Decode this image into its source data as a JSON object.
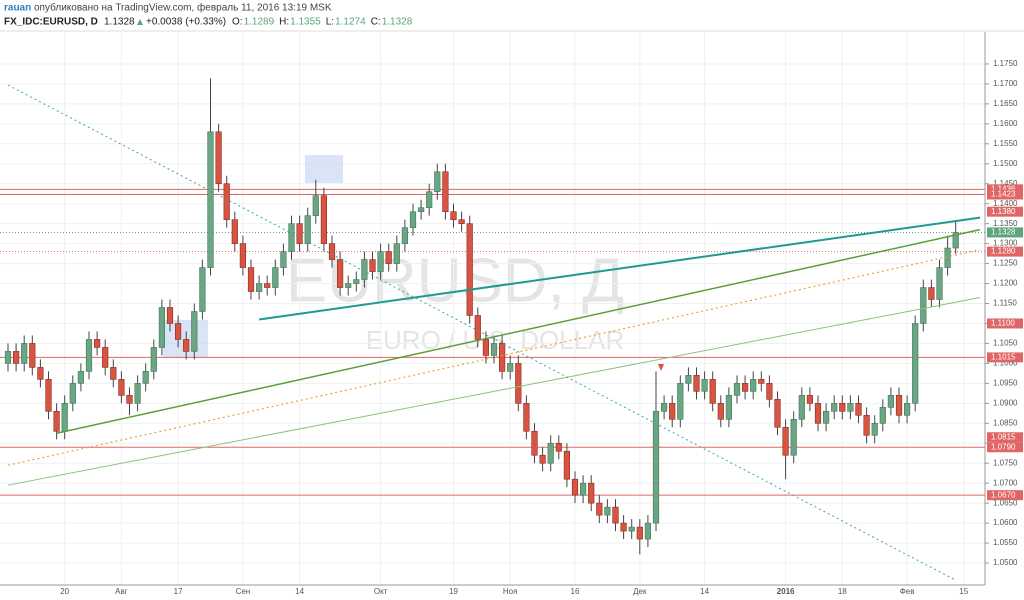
{
  "header": {
    "user": "rauan",
    "published": "опубликовано на TradingView.com, февраль 11, 2016 13:19 MSK",
    "symbol": "FX_IDC:EURUSD, D",
    "last": "1.1328",
    "change": "+0.0038 (+0.33%)",
    "ohlc": [
      {
        "label": "O:",
        "value": "1.1289"
      },
      {
        "label": "H:",
        "value": "1.1355"
      },
      {
        "label": "L:",
        "value": "1.1274"
      },
      {
        "label": "C:",
        "value": "1.1328"
      }
    ]
  },
  "chart_data": {
    "type": "candlestick",
    "watermark": {
      "symbol": "EURUSD, Д",
      "description": "EURO / U.S. DOLLAR"
    },
    "categories": [
      null,
      null,
      null,
      null,
      null,
      null,
      null,
      "20",
      null,
      null,
      null,
      null,
      null,
      null,
      "Авг",
      null,
      null,
      null,
      null,
      null,
      null,
      "17",
      null,
      null,
      null,
      null,
      null,
      null,
      null,
      "Сен",
      null,
      null,
      null,
      null,
      null,
      null,
      "14",
      null,
      null,
      null,
      null,
      null,
      null,
      null,
      null,
      null,
      "Окт",
      null,
      null,
      null,
      null,
      null,
      null,
      null,
      null,
      "19",
      null,
      null,
      null,
      null,
      null,
      null,
      "Ноя",
      null,
      null,
      null,
      null,
      null,
      null,
      null,
      "16",
      null,
      null,
      null,
      null,
      null,
      null,
      null,
      "Дек",
      null,
      null,
      null,
      null,
      null,
      null,
      null,
      "14",
      null,
      null,
      null,
      null,
      null,
      null,
      null,
      null,
      null,
      "2016",
      null,
      null,
      null,
      null,
      null,
      null,
      "18",
      null,
      null,
      null,
      null,
      null,
      null,
      null,
      "Фев",
      null,
      null,
      null,
      null,
      null,
      null,
      "15"
    ],
    "open": [
      1.1,
      1.103,
      1.1,
      1.105,
      1.099,
      1.096,
      1.088,
      1.083,
      1.09,
      1.095,
      1.098,
      1.106,
      1.104,
      1.099,
      1.096,
      1.092,
      1.09,
      1.095,
      1.098,
      1.104,
      1.114,
      1.11,
      1.106,
      1.103,
      1.113,
      1.124,
      1.158,
      1.145,
      1.136,
      1.13,
      1.124,
      1.118,
      1.12,
      1.119,
      1.124,
      1.128,
      1.135,
      1.13,
      1.137,
      1.142,
      1.13,
      1.126,
      1.119,
      1.12,
      1.121,
      1.126,
      1.123,
      1.128,
      1.125,
      1.13,
      1.134,
      1.138,
      1.139,
      1.143,
      1.148,
      1.138,
      1.136,
      1.135,
      1.112,
      1.106,
      1.102,
      1.105,
      1.098,
      1.1,
      1.09,
      1.083,
      1.077,
      1.075,
      1.08,
      1.078,
      1.071,
      1.067,
      1.07,
      1.065,
      1.062,
      1.064,
      1.06,
      1.058,
      1.059,
      1.056,
      1.06,
      1.088,
      1.09,
      1.086,
      1.095,
      1.097,
      1.093,
      1.096,
      1.09,
      1.086,
      1.092,
      1.095,
      1.093,
      1.096,
      1.095,
      1.091,
      1.084,
      1.077,
      1.086,
      1.092,
      1.09,
      1.085,
      1.088,
      1.09,
      1.088,
      1.09,
      1.087,
      1.082,
      1.085,
      1.089,
      1.092,
      1.087,
      1.09,
      1.11,
      1.119,
      1.116,
      1.124,
      1.1289,
      null
    ],
    "high": [
      1.105,
      1.105,
      1.107,
      1.107,
      1.101,
      1.098,
      1.09,
      1.092,
      1.097,
      1.1,
      1.108,
      1.108,
      1.106,
      1.101,
      1.098,
      1.094,
      1.097,
      1.1,
      1.106,
      1.116,
      1.116,
      1.112,
      1.108,
      1.115,
      1.126,
      1.1714,
      1.16,
      1.147,
      1.138,
      1.132,
      1.126,
      1.122,
      1.122,
      1.126,
      1.13,
      1.137,
      1.137,
      1.139,
      1.146,
      1.144,
      1.132,
      1.128,
      1.122,
      1.123,
      1.128,
      1.128,
      1.13,
      1.13,
      1.132,
      1.136,
      1.14,
      1.141,
      1.145,
      1.15,
      1.15,
      1.14,
      1.138,
      1.137,
      1.114,
      1.108,
      1.107,
      1.107,
      1.102,
      1.102,
      1.092,
      1.085,
      1.079,
      1.082,
      1.082,
      1.08,
      1.073,
      1.072,
      1.072,
      1.067,
      1.066,
      1.066,
      1.062,
      1.061,
      1.061,
      1.062,
      1.098,
      1.092,
      1.092,
      1.097,
      1.099,
      1.099,
      1.098,
      1.098,
      1.092,
      1.094,
      1.097,
      1.097,
      1.098,
      1.098,
      1.097,
      1.093,
      1.086,
      1.088,
      1.094,
      1.094,
      1.092,
      1.09,
      1.092,
      1.092,
      1.092,
      1.092,
      1.089,
      1.087,
      1.091,
      1.094,
      1.094,
      1.092,
      1.112,
      1.121,
      1.121,
      1.126,
      1.132,
      1.1355,
      null
    ],
    "low": [
      1.098,
      1.098,
      1.098,
      1.097,
      1.094,
      1.086,
      1.081,
      1.081,
      1.088,
      1.093,
      1.096,
      1.102,
      1.097,
      1.094,
      1.09,
      1.087,
      1.088,
      1.093,
      1.096,
      1.102,
      1.108,
      1.104,
      1.101,
      1.101,
      1.111,
      1.122,
      1.143,
      1.134,
      1.128,
      1.122,
      1.116,
      1.116,
      1.117,
      1.117,
      1.122,
      1.126,
      1.128,
      1.128,
      1.135,
      1.128,
      1.124,
      1.117,
      1.117,
      1.118,
      1.119,
      1.121,
      1.121,
      1.123,
      1.123,
      1.128,
      1.132,
      1.136,
      1.137,
      1.141,
      1.136,
      1.134,
      1.133,
      1.11,
      1.104,
      1.1,
      1.1,
      1.096,
      1.096,
      1.088,
      1.081,
      1.075,
      1.073,
      1.073,
      1.076,
      1.069,
      1.065,
      1.065,
      1.063,
      1.06,
      1.06,
      1.058,
      1.056,
      1.056,
      1.0522,
      1.054,
      1.058,
      1.086,
      1.084,
      1.084,
      1.093,
      1.091,
      1.091,
      1.088,
      1.084,
      1.084,
      1.09,
      1.091,
      1.091,
      1.093,
      1.089,
      1.082,
      1.071,
      1.075,
      1.084,
      1.088,
      1.083,
      1.083,
      1.086,
      1.086,
      1.086,
      1.085,
      1.08,
      1.08,
      1.083,
      1.087,
      1.085,
      1.085,
      1.088,
      1.108,
      1.114,
      1.114,
      1.122,
      1.1274,
      null
    ],
    "close": [
      1.103,
      1.1,
      1.105,
      1.099,
      1.096,
      1.088,
      1.083,
      1.09,
      1.095,
      1.098,
      1.106,
      1.104,
      1.099,
      1.096,
      1.092,
      1.09,
      1.095,
      1.098,
      1.104,
      1.114,
      1.11,
      1.106,
      1.103,
      1.113,
      1.124,
      1.158,
      1.145,
      1.136,
      1.13,
      1.124,
      1.118,
      1.12,
      1.119,
      1.124,
      1.128,
      1.135,
      1.13,
      1.137,
      1.142,
      1.13,
      1.126,
      1.119,
      1.12,
      1.121,
      1.126,
      1.123,
      1.128,
      1.125,
      1.13,
      1.134,
      1.138,
      1.139,
      1.143,
      1.148,
      1.138,
      1.136,
      1.135,
      1.112,
      1.106,
      1.102,
      1.105,
      1.098,
      1.1,
      1.09,
      1.083,
      1.077,
      1.075,
      1.08,
      1.078,
      1.071,
      1.067,
      1.07,
      1.065,
      1.062,
      1.064,
      1.06,
      1.058,
      1.059,
      1.056,
      1.06,
      1.088,
      1.09,
      1.086,
      1.095,
      1.097,
      1.093,
      1.096,
      1.09,
      1.086,
      1.092,
      1.095,
      1.093,
      1.096,
      1.095,
      1.091,
      1.084,
      1.077,
      1.086,
      1.092,
      1.09,
      1.085,
      1.088,
      1.09,
      1.088,
      1.09,
      1.087,
      1.082,
      1.085,
      1.089,
      1.092,
      1.087,
      1.09,
      1.11,
      1.119,
      1.116,
      1.124,
      1.1289,
      1.1328,
      null
    ],
    "up_color": "#6ba583",
    "down_color": "#d75442",
    "ylim": [
      1.0445,
      1.183
    ],
    "yticks": [
      {
        "value": 1.05,
        "label": "1.0500"
      },
      {
        "value": 1.055,
        "label": "1.0550"
      },
      {
        "value": 1.06,
        "label": "1.0600"
      },
      {
        "value": 1.065,
        "label": "1.0650"
      },
      {
        "value": 1.07,
        "label": "1.0700"
      },
      {
        "value": 1.075,
        "label": "1.0750"
      },
      {
        "value": 1.08,
        "label": "1.0800"
      },
      {
        "value": 1.085,
        "label": "1.0850"
      },
      {
        "value": 1.09,
        "label": "1.0900"
      },
      {
        "value": 1.095,
        "label": "1.0950"
      },
      {
        "value": 1.1,
        "label": "1.1000"
      },
      {
        "value": 1.105,
        "label": "1.1050"
      },
      {
        "value": 1.11,
        "label": "1.1100"
      },
      {
        "value": 1.115,
        "label": "1.1150"
      },
      {
        "value": 1.12,
        "label": "1.1200"
      },
      {
        "value": 1.125,
        "label": "1.1250"
      },
      {
        "value": 1.13,
        "label": "1.1300"
      },
      {
        "value": 1.135,
        "label": "1.1350"
      },
      {
        "value": 1.14,
        "label": "1.1400"
      },
      {
        "value": 1.145,
        "label": "1.1450"
      },
      {
        "value": 1.15,
        "label": "1.1500"
      },
      {
        "value": 1.155,
        "label": "1.1550"
      },
      {
        "value": 1.16,
        "label": "1.1600"
      },
      {
        "value": 1.165,
        "label": "1.1650"
      },
      {
        "value": 1.17,
        "label": "1.1700"
      },
      {
        "value": 1.175,
        "label": "1.1750"
      }
    ],
    "grid": true,
    "levels": [
      {
        "value": 1.1436,
        "label": "1.1436",
        "color": "#e06666",
        "line": "solid"
      },
      {
        "value": 1.1423,
        "label": "1.1423",
        "color": "#e06666",
        "line": "solid"
      },
      {
        "value": 1.138,
        "label": "1.1380",
        "color": "#e06666",
        "line": "none"
      },
      {
        "value": 1.1328,
        "label": "1.1328",
        "color": "#5aa57a",
        "line": "dotted"
      },
      {
        "value": 1.128,
        "label": "1.1280",
        "color": "#e06666",
        "line": "dotted"
      },
      {
        "value": 1.11,
        "label": "1.1100",
        "color": "#e06666",
        "line": "none"
      },
      {
        "value": 1.1015,
        "label": "1.1015",
        "color": "#e06666",
        "line": "solid"
      },
      {
        "value": 1.0815,
        "label": "1.0815",
        "color": "#e06666",
        "line": "none"
      },
      {
        "value": 1.079,
        "label": "1.0790",
        "color": "#e06666",
        "line": "solid"
      },
      {
        "value": 1.067,
        "label": "1.0670",
        "color": "#e06666",
        "line": "solid"
      }
    ],
    "trend_lines": [
      {
        "color": "#1f9a8e",
        "dash": "none",
        "width": 2,
        "from": [
          31,
          1.111
        ],
        "to": [
          120,
          1.1365
        ]
      },
      {
        "color": "#5a9e3a",
        "dash": "none",
        "width": 1.5,
        "from": [
          6,
          1.0825
        ],
        "to": [
          120,
          1.1335
        ]
      },
      {
        "color": "#8cc27a",
        "dash": "none",
        "width": 1,
        "from": [
          0,
          1.0695
        ],
        "to": [
          120,
          1.1165
        ]
      },
      {
        "color": "#f0a030",
        "dash": "2,3",
        "width": 1.2,
        "from": [
          0,
          1.0745
        ],
        "to": [
          120,
          1.1285
        ]
      },
      {
        "color": "#3aa89a",
        "dash": "2,3",
        "width": 1,
        "from": [
          0,
          1.1697
        ],
        "to": [
          117,
          1.0457
        ]
      }
    ]
  }
}
